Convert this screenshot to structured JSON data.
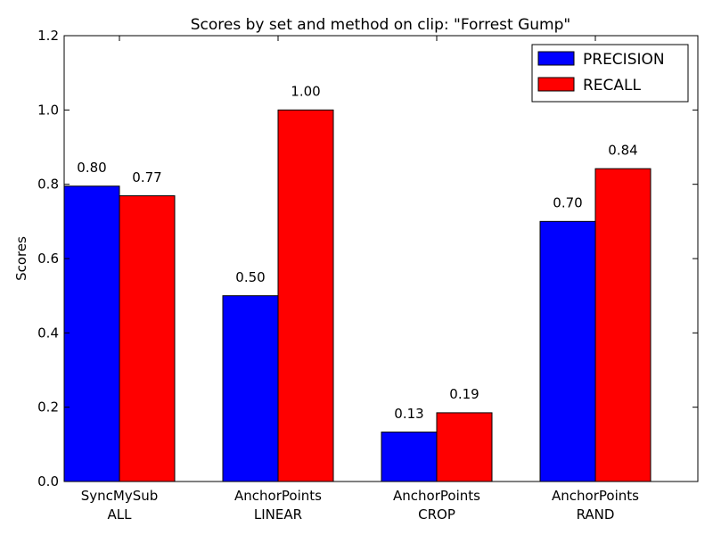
{
  "chart_data": {
    "type": "bar",
    "title": "Scores by set and method on clip: \"Forrest Gump\"",
    "xlabel": "",
    "ylabel": "Scores",
    "ylim": [
      0,
      1.2
    ],
    "yticks": [
      "0.0",
      "0.2",
      "0.4",
      "0.6",
      "0.8",
      "1.0",
      "1.2"
    ],
    "categories": [
      [
        "SyncMySub",
        "ALL"
      ],
      [
        "AnchorPoints",
        "LINEAR"
      ],
      [
        "AnchorPoints",
        "CROP"
      ],
      [
        "AnchorPoints",
        "RAND"
      ]
    ],
    "series": [
      {
        "name": "PRECISION",
        "color": "#0000ff",
        "values": [
          0.795,
          0.5,
          0.133,
          0.7
        ],
        "labels": [
          "0.80",
          "0.50",
          "0.13",
          "0.70"
        ]
      },
      {
        "name": "RECALL",
        "color": "#ff0000",
        "values": [
          0.769,
          1.0,
          0.185,
          0.842
        ],
        "labels": [
          "0.77",
          "1.00",
          "0.19",
          "0.84"
        ]
      }
    ],
    "grid": false,
    "legend": "top-right"
  }
}
